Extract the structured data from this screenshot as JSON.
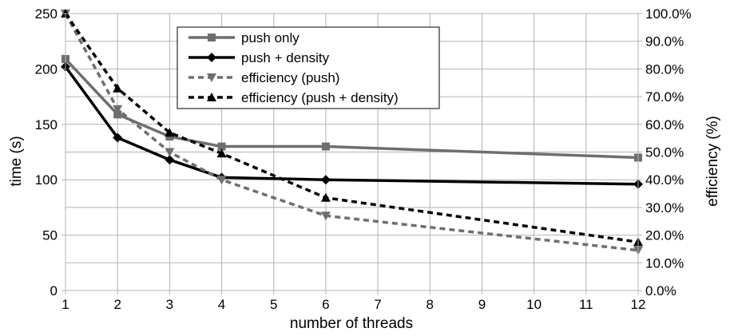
{
  "chart_data": {
    "type": "line",
    "title": "",
    "xlabel": "number of threads",
    "ylabel": "time (s)",
    "y2label": "efficiency (%)",
    "x_categories": [
      "1",
      "2",
      "3",
      "4",
      "5",
      "6",
      "7",
      "8",
      "9",
      "10",
      "11",
      "12"
    ],
    "ylim": [
      0,
      250
    ],
    "y_ticks": [
      "0",
      "50",
      "100",
      "150",
      "200",
      "250"
    ],
    "y2lim": [
      0,
      100
    ],
    "y2_ticks": [
      "0.0%",
      "10.0%",
      "20.0%",
      "30.0%",
      "40.0%",
      "50.0%",
      "60.0%",
      "70.0%",
      "80.0%",
      "90.0%",
      "100.0%"
    ],
    "grid": true,
    "legend_position": "top-center",
    "series": [
      {
        "name": "push only",
        "axis": "left",
        "color": "#6e6e6e",
        "dash": false,
        "marker": "square",
        "x": [
          1,
          2,
          3,
          4,
          6,
          12
        ],
        "values": [
          209,
          159,
          139,
          130,
          130,
          120
        ]
      },
      {
        "name": "push + density",
        "axis": "left",
        "color": "#000000",
        "dash": false,
        "marker": "diamond",
        "x": [
          1,
          2,
          3,
          4,
          6,
          12
        ],
        "values": [
          202,
          138,
          118,
          102,
          100,
          96
        ]
      },
      {
        "name": "efficiency (push)",
        "axis": "right",
        "color": "#6e6e6e",
        "dash": true,
        "marker": "triangle-down",
        "x": [
          1,
          2,
          3,
          4,
          6,
          12
        ],
        "values": [
          100,
          65.5,
          50,
          40,
          27,
          14.5
        ]
      },
      {
        "name": "efficiency (push + density)",
        "axis": "right",
        "color": "#000000",
        "dash": true,
        "marker": "triangle-up",
        "x": [
          1,
          2,
          3,
          4,
          6,
          12
        ],
        "values": [
          100,
          73,
          57,
          49.5,
          33.5,
          17.5
        ]
      }
    ]
  }
}
